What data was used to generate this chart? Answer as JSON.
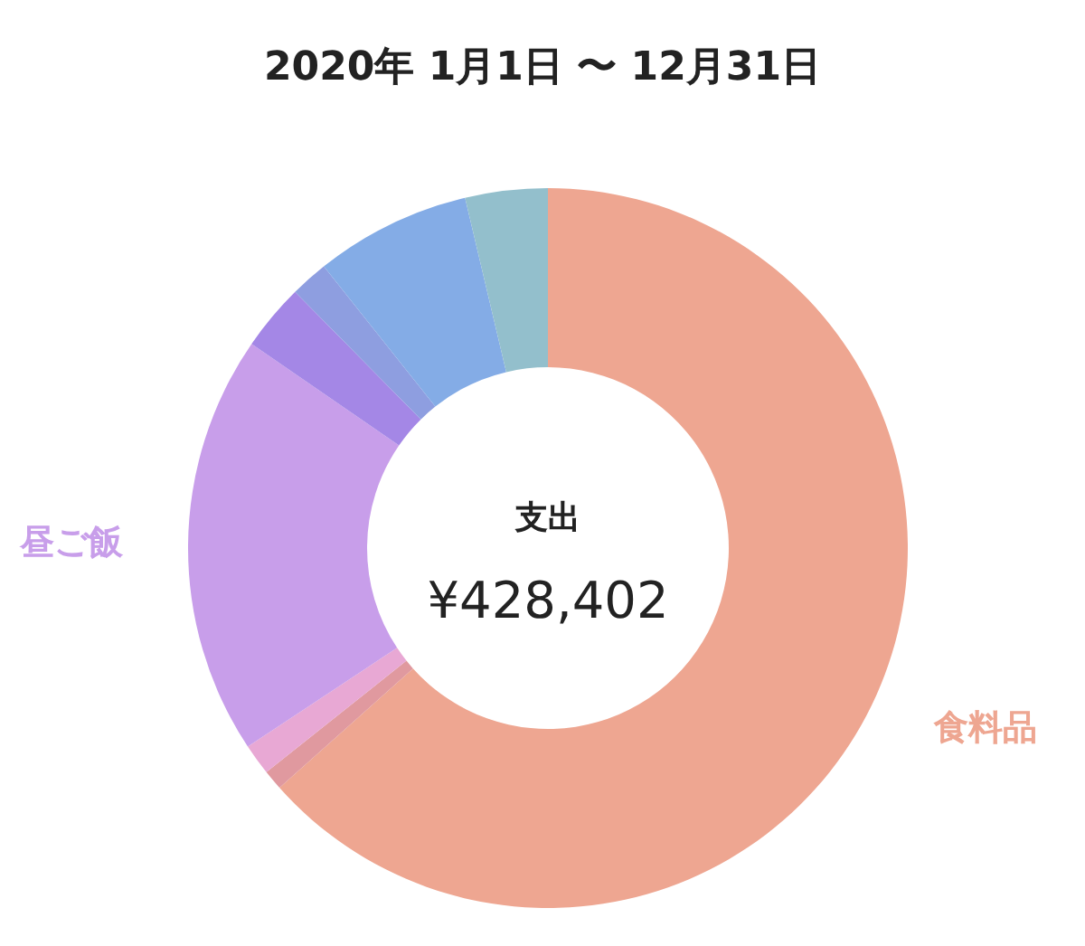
{
  "chart_data": {
    "type": "donut",
    "title": "2020年 1月1日 〜 12月31日",
    "categories": [
      "食料品",
      null,
      null,
      "昼ご飯",
      null,
      null,
      null,
      null
    ],
    "values": [
      63.4,
      0.9,
      1.4,
      18.9,
      3.0,
      1.7,
      7.0,
      3.7
    ],
    "colors": [
      "#eea691",
      "#e0999f",
      "#e8a8d4",
      "#c89eea",
      "#a487e6",
      "#8e9ee0",
      "#84ace6",
      "#93bfcc"
    ],
    "annotations": [
      "支出",
      "¥428,402"
    ]
  }
}
